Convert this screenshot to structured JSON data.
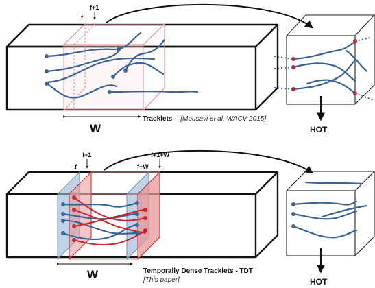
{
  "top_panel": {
    "label_f": "f",
    "label_f1": "f+1",
    "window_label": "W",
    "caption_title": "Tracklets -",
    "caption_cite": "[Mousavi et al. WACV 2015]",
    "output_label": "HOT"
  },
  "bottom_panel": {
    "label_f": "f",
    "label_f1": "f+1",
    "label_fw": "f+W",
    "label_f1w": "f+1+W",
    "window_label": "W",
    "caption_title": "Temporally Dense Tracklets - TDT",
    "caption_cite": "[This paper]",
    "output_label": "HOT"
  },
  "colors": {
    "tracklet": "#3a6496",
    "tracklet_alt": "#c8242c",
    "window_red": "#e8898b",
    "window_blue": "#9fb8d8"
  }
}
